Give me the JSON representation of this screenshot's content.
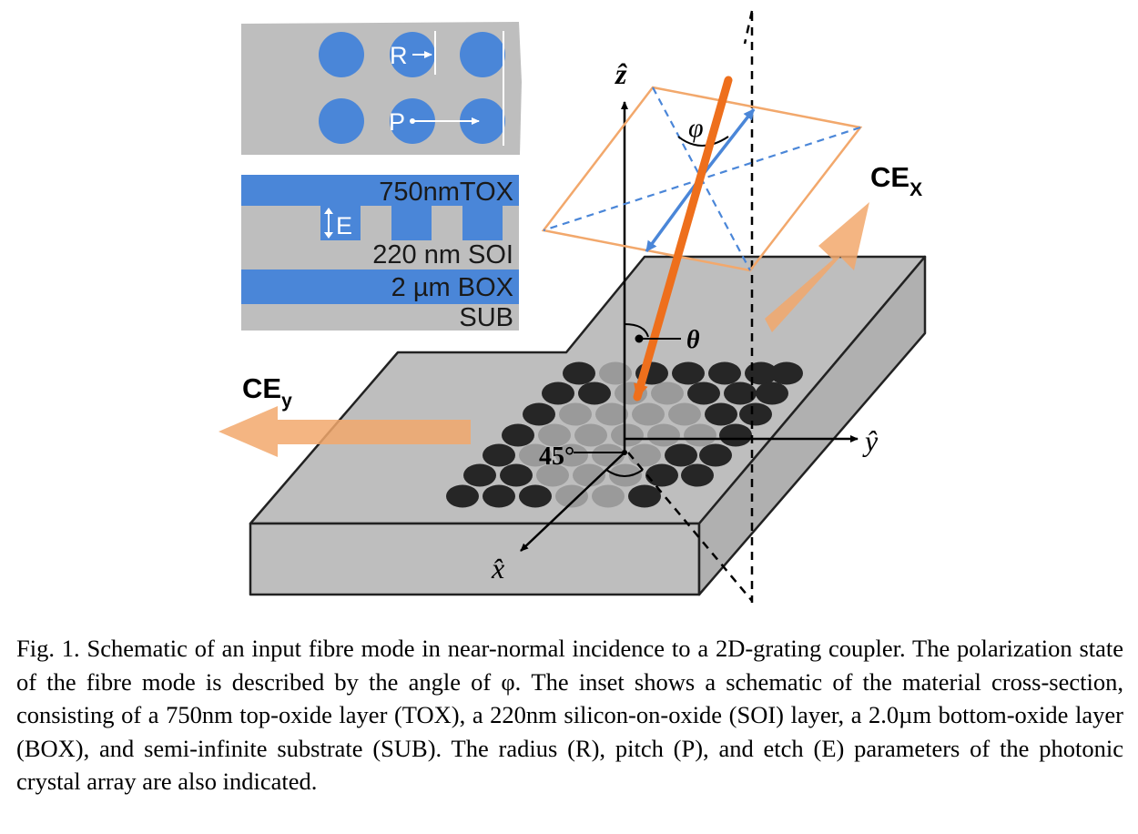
{
  "figure": {
    "inset_lattice": {
      "label_r": "R",
      "label_p": "P"
    },
    "inset_layers": {
      "tox": "750nmTOX",
      "etch": "E",
      "soi": "220 nm SOI",
      "box": "2 µm BOX",
      "sub": "SUB"
    },
    "axes": {
      "z": "ẑ",
      "y": "ŷ",
      "x": "x̂"
    },
    "angles": {
      "phi": "φ",
      "theta": "θ",
      "rotation": "45°"
    },
    "outputs": {
      "ce_x_main": "CE",
      "ce_x_sub": "X",
      "ce_y_main": "CE",
      "ce_y_sub": "y"
    },
    "colors": {
      "blue": "#4a86d8",
      "orange": "#ee6f1c",
      "light_orange": "#f2a86c",
      "slab_gray": "#bebebe",
      "hole_dark": "#262626",
      "hole_light": "#9a9a9a"
    }
  },
  "caption": {
    "text": "Fig. 1. Schematic of an input fibre mode in near-normal incidence to a 2D-grating coupler. The polarization state of the fibre mode is described by the angle of φ. The inset shows a schematic of the material cross-section, consisting of a 750nm top-oxide layer (TOX), a 220nm silicon-on-oxide (SOI) layer, a 2.0µm bottom-oxide layer (BOX), and semi-infinite substrate (SUB). The radius (R), pitch (P), and etch (E) parameters of the photonic crystal array are also indicated."
  }
}
